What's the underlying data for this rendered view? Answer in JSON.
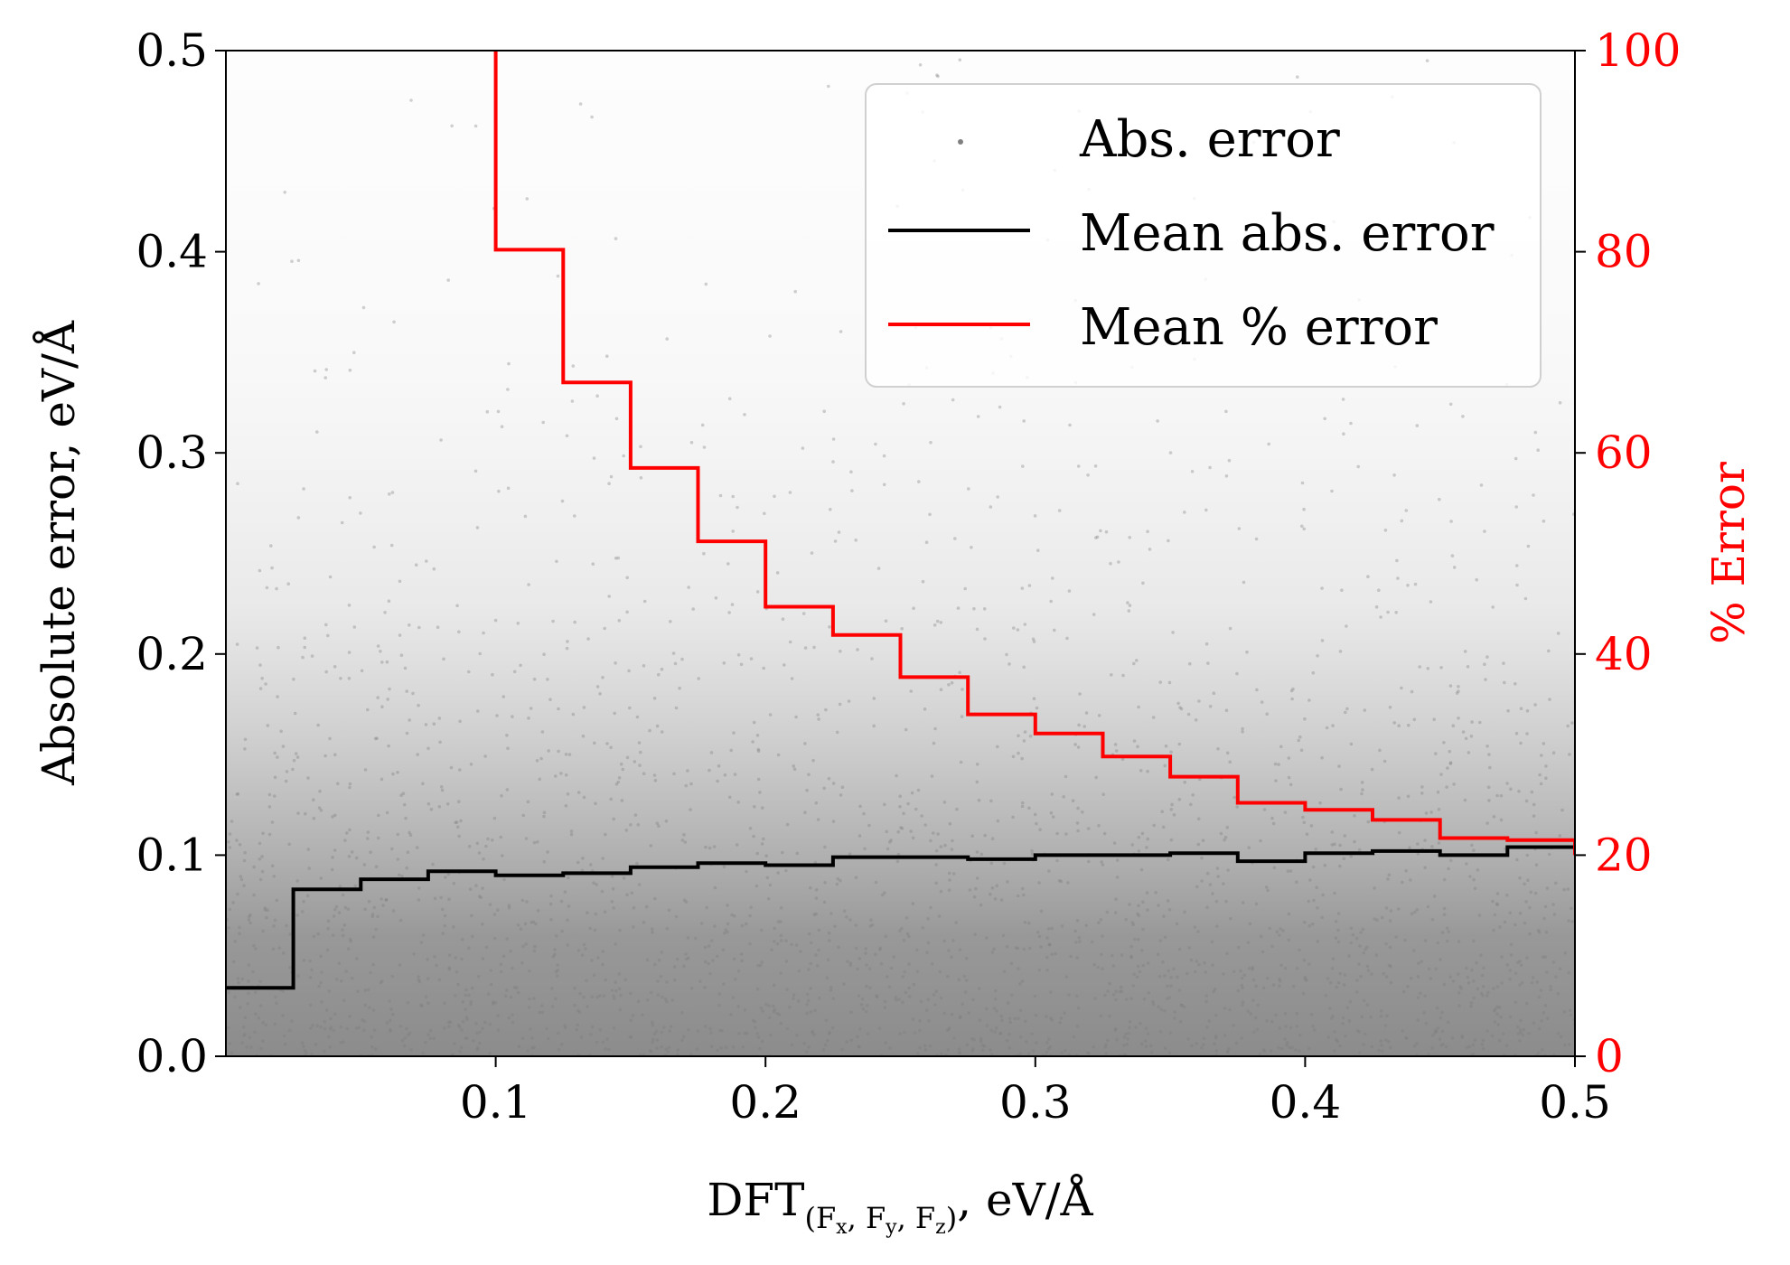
{
  "chart_data": {
    "type": "line",
    "x_axis": {
      "label_main": "DFT",
      "label_subscript": "(F",
      "label_parts": [
        "x",
        ", F",
        "y",
        ", F",
        "z",
        ")"
      ],
      "label_unit": ",  eV/Å",
      "range": [
        0.0,
        0.5
      ],
      "ticks": [
        0.1,
        0.2,
        0.3,
        0.4,
        0.5
      ],
      "tick_labels": [
        "0.1",
        "0.2",
        "0.3",
        "0.4",
        "0.5"
      ]
    },
    "y_axis_left": {
      "label": "Absolute error,  eV/Å",
      "range": [
        0.0,
        0.5
      ],
      "ticks": [
        0.0,
        0.1,
        0.2,
        0.3,
        0.4,
        0.5
      ],
      "tick_labels": [
        "0.0",
        "0.1",
        "0.2",
        "0.3",
        "0.4",
        "0.5"
      ]
    },
    "y_axis_right": {
      "label": "% Error",
      "color": "#ff0000",
      "range": [
        0,
        100
      ],
      "ticks": [
        0,
        20,
        40,
        60,
        80,
        100
      ],
      "tick_labels": [
        "0",
        "20",
        "40",
        "60",
        "80",
        "100"
      ]
    },
    "legend": {
      "placement": "top-right",
      "entries": [
        {
          "label": "Abs. error",
          "kind": "marker",
          "color": "#808080"
        },
        {
          "label": "Mean abs. error",
          "kind": "line",
          "color": "#000000"
        },
        {
          "label": "Mean % error",
          "kind": "line",
          "color": "#ff0000"
        }
      ]
    },
    "scatter_series": {
      "name": "Abs. error",
      "color": "#808080",
      "description_note": ""
    },
    "bin_edges": [
      0.0,
      0.025,
      0.05,
      0.075,
      0.1,
      0.125,
      0.15,
      0.175,
      0.2,
      0.225,
      0.25,
      0.275,
      0.3,
      0.325,
      0.35,
      0.375,
      0.4,
      0.425,
      0.45,
      0.475,
      0.5
    ],
    "series": [
      {
        "name": "Mean abs. error",
        "axis": "left",
        "color": "#000000",
        "step_values": [
          0.034,
          0.083,
          0.088,
          0.092,
          0.09,
          0.091,
          0.094,
          0.096,
          0.095,
          0.099,
          0.099,
          0.098,
          0.1,
          0.1,
          0.101,
          0.097,
          0.101,
          0.102,
          0.1,
          0.104
        ]
      },
      {
        "name": "Mean % error",
        "axis": "right",
        "color": "#ff0000",
        "step_values": [
          null,
          null,
          null,
          null,
          80.2,
          67.0,
          58.5,
          51.2,
          44.7,
          41.9,
          37.7,
          34.0,
          32.1,
          29.8,
          27.8,
          25.2,
          24.5,
          23.5,
          21.7,
          21.5
        ],
        "start_value_offscale": 100,
        "end_value": 20
      }
    ]
  }
}
